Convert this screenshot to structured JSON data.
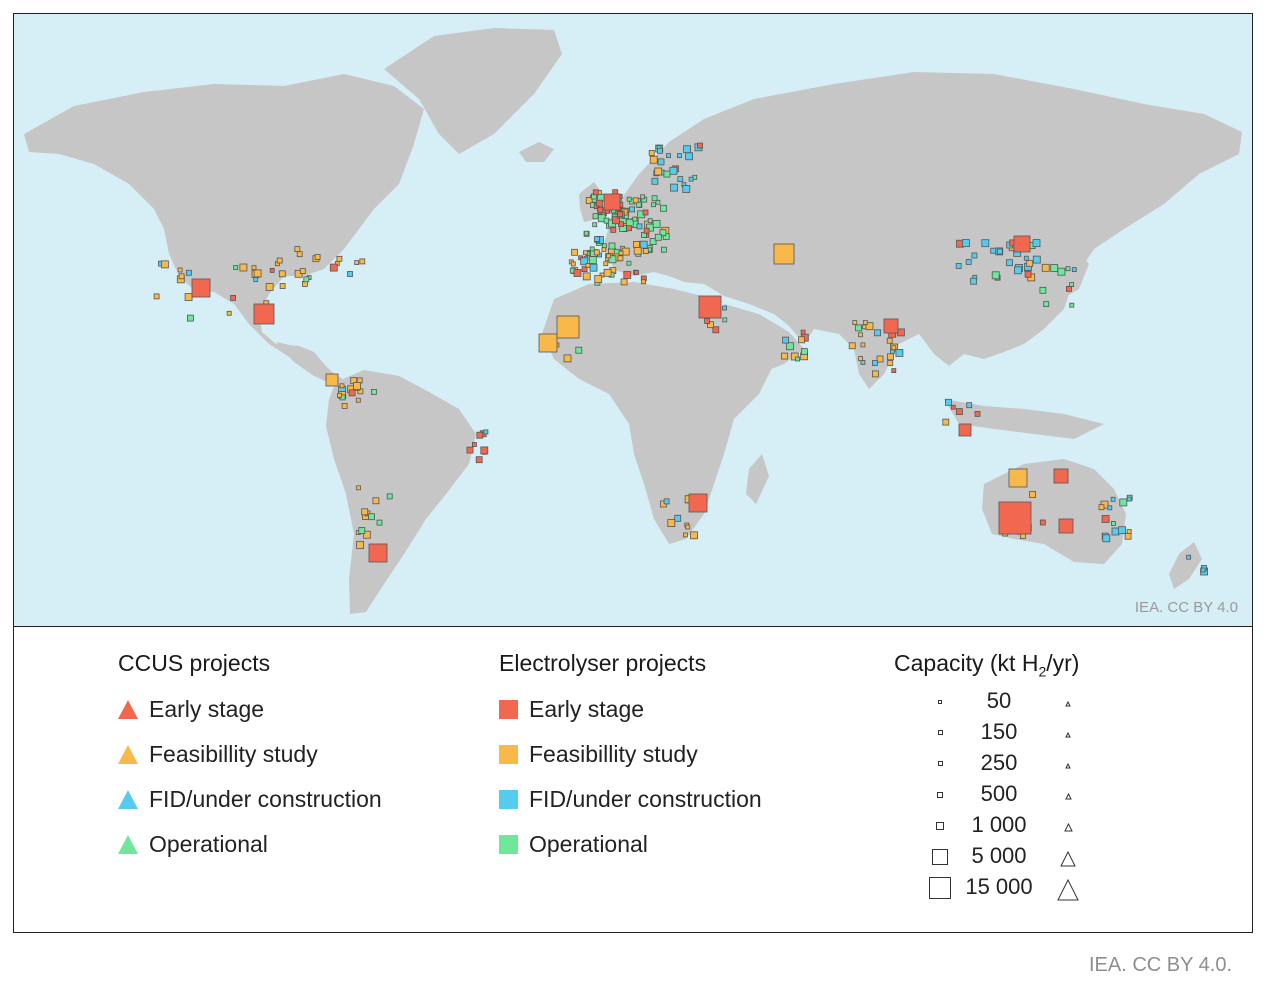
{
  "map": {
    "credit_inmap": "IEA. CC BY 4.0",
    "colors": {
      "ocean": "#d6eef6",
      "land": "#c6c6c6",
      "early_stage": "#f2674f",
      "feasibility": "#f8b84a",
      "fid": "#55ccee",
      "operational": "#6ee79a"
    }
  },
  "legend": {
    "ccus": {
      "title": "CCUS projects",
      "items": [
        {
          "label": "Early stage",
          "color": "#f2674f"
        },
        {
          "label": "Feasibillity study",
          "color": "#f8b84a"
        },
        {
          "label": "FID/under construction",
          "color": "#55ccee"
        },
        {
          "label": "Operational",
          "color": "#6ee79a"
        }
      ]
    },
    "electrolyser": {
      "title": "Electrolyser projects",
      "items": [
        {
          "label": "Early stage",
          "color": "#f2674f"
        },
        {
          "label": "Feasibillity study",
          "color": "#f8b84a"
        },
        {
          "label": "FID/under construction",
          "color": "#55ccee"
        },
        {
          "label": "Operational",
          "color": "#6ee79a"
        }
      ]
    },
    "capacity": {
      "title_prefix": "Capacity (kt H",
      "title_sub": "2",
      "title_suffix": "/yr)",
      "values": [
        "50",
        "150",
        "250",
        "500",
        "1 000",
        "5 000",
        "15 000"
      ]
    }
  },
  "footer": {
    "credit": "IEA. CC BY 4.0."
  }
}
